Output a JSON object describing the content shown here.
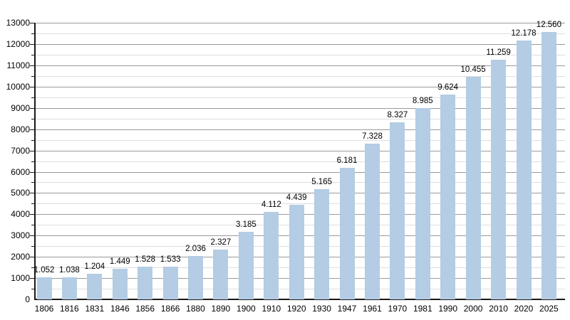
{
  "chart_data": {
    "type": "bar",
    "title": "",
    "xlabel": "",
    "ylabel": "",
    "categories": [
      "1806",
      "1816",
      "1831",
      "1846",
      "1856",
      "1866",
      "1880",
      "1890",
      "1900",
      "1910",
      "1920",
      "1930",
      "1947",
      "1961",
      "1970",
      "1981",
      "1990",
      "2000",
      "2010",
      "2020",
      "2025"
    ],
    "values": [
      1052,
      1038,
      1204,
      1449,
      1528,
      1533,
      2036,
      2327,
      3185,
      4112,
      4439,
      5165,
      6181,
      7328,
      8327,
      8985,
      9624,
      10455,
      11259,
      12178,
      12560
    ],
    "value_labels": [
      "1.052",
      "1.038",
      "1.204",
      "1.449",
      "1.528",
      "1.533",
      "2.036",
      "2.327",
      "3.185",
      "4.112",
      "4.439",
      "5.165",
      "6.181",
      "7.328",
      "8.327",
      "8.985",
      "9.624",
      "10.455",
      "11.259",
      "12.178",
      "12.560"
    ],
    "ylim": [
      0,
      13000
    ],
    "ytick_major_step": 1000,
    "ytick_minor_step": 500,
    "ytick_labels": [
      "0",
      "1000",
      "2000",
      "3000",
      "4000",
      "5000",
      "6000",
      "7000",
      "8000",
      "9000",
      "10000",
      "11000",
      "12000",
      "13000"
    ],
    "grid": "on",
    "legend": "none",
    "colors": {
      "background": "#ffffff",
      "bar_fill": "#b4cce4",
      "grid_major": "#9a9a9a",
      "grid_minor": "#dedede",
      "axis": "#1a1a1a",
      "text": "#000000"
    }
  }
}
